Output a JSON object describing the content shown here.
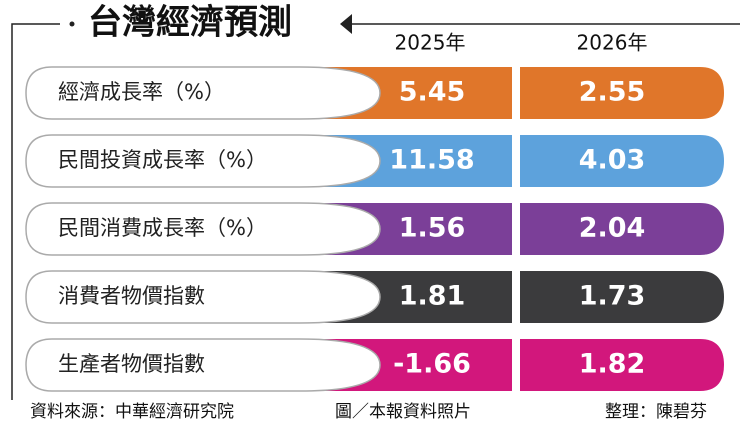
{
  "header": {
    "title": "台灣經濟預測",
    "columns": [
      "2025年",
      "2026年"
    ]
  },
  "table": {
    "rows": [
      {
        "label": "經濟成長率（%）",
        "values": [
          5.45,
          2.55
        ],
        "color": "#e0762a"
      },
      {
        "label": "民間投資成長率（%）",
        "values": [
          11.58,
          4.03
        ],
        "color": "#5da2dc"
      },
      {
        "label": "民間消費成長率（%）",
        "values": [
          1.56,
          2.04
        ],
        "color": "#7b3f98"
      },
      {
        "label": "消費者物價指數",
        "values": [
          1.81,
          1.73
        ],
        "color": "#3b3b3d"
      },
      {
        "label": "生產者物價指數",
        "values": [
          -1.66,
          1.82
        ],
        "color": "#d2177c"
      }
    ]
  },
  "footer": {
    "source": "資料來源：中華經濟研究院",
    "photo": "圖／本報資料照片",
    "editor": "整理：陳碧芬"
  }
}
